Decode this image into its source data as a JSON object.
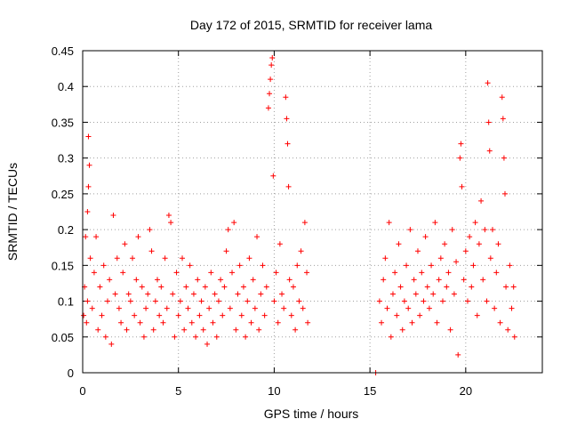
{
  "chart_data": {
    "type": "scatter",
    "title": "Day 172 of 2015, SRMTID for receiver lama",
    "xlabel": "GPS time / hours",
    "ylabel": "SRMTID / TECUs",
    "xlim": [
      0,
      24
    ],
    "ylim": [
      0,
      0.45
    ],
    "xticks": [
      0,
      5,
      10,
      15,
      20
    ],
    "yticks": [
      0,
      0.05,
      0.1,
      0.15,
      0.2,
      0.25,
      0.3,
      0.35,
      0.4,
      0.45
    ],
    "ytick_labels": [
      "0",
      "0.05",
      "0.1",
      "0.15",
      "0.2",
      "0.25",
      "0.3",
      "0.35",
      "0.4",
      "0.45"
    ],
    "grid": true,
    "marker": "+",
    "color": "#ff0000",
    "series": [
      {
        "name": "SRMTID",
        "points": [
          [
            0.05,
            0.08
          ],
          [
            0.1,
            0.12
          ],
          [
            0.15,
            0.19
          ],
          [
            0.2,
            0.07
          ],
          [
            0.25,
            0.1
          ],
          [
            0.3,
            0.33
          ],
          [
            0.35,
            0.29
          ],
          [
            0.3,
            0.26
          ],
          [
            0.25,
            0.225
          ],
          [
            0.4,
            0.16
          ],
          [
            0.5,
            0.09
          ],
          [
            0.6,
            0.14
          ],
          [
            0.7,
            0.19
          ],
          [
            0.8,
            0.06
          ],
          [
            0.9,
            0.12
          ],
          [
            1.0,
            0.08
          ],
          [
            1.1,
            0.15
          ],
          [
            1.2,
            0.05
          ],
          [
            1.3,
            0.1
          ],
          [
            1.4,
            0.13
          ],
          [
            1.5,
            0.04
          ],
          [
            1.6,
            0.22
          ],
          [
            1.7,
            0.11
          ],
          [
            1.8,
            0.16
          ],
          [
            1.9,
            0.09
          ],
          [
            2.0,
            0.07
          ],
          [
            2.1,
            0.14
          ],
          [
            2.2,
            0.18
          ],
          [
            2.3,
            0.06
          ],
          [
            2.4,
            0.11
          ],
          [
            2.5,
            0.1
          ],
          [
            2.6,
            0.16
          ],
          [
            2.7,
            0.08
          ],
          [
            2.8,
            0.13
          ],
          [
            2.9,
            0.19
          ],
          [
            3.0,
            0.07
          ],
          [
            3.1,
            0.12
          ],
          [
            3.2,
            0.05
          ],
          [
            3.3,
            0.09
          ],
          [
            3.4,
            0.11
          ],
          [
            3.5,
            0.2
          ],
          [
            3.6,
            0.17
          ],
          [
            3.7,
            0.06
          ],
          [
            3.8,
            0.1
          ],
          [
            3.9,
            0.13
          ],
          [
            4.0,
            0.08
          ],
          [
            4.1,
            0.12
          ],
          [
            4.2,
            0.07
          ],
          [
            4.3,
            0.16
          ],
          [
            4.4,
            0.09
          ],
          [
            4.5,
            0.22
          ],
          [
            4.6,
            0.21
          ],
          [
            4.7,
            0.11
          ],
          [
            4.8,
            0.05
          ],
          [
            4.9,
            0.14
          ],
          [
            5.0,
            0.08
          ],
          [
            5.1,
            0.1
          ],
          [
            5.2,
            0.16
          ],
          [
            5.3,
            0.06
          ],
          [
            5.4,
            0.12
          ],
          [
            5.5,
            0.09
          ],
          [
            5.6,
            0.15
          ],
          [
            5.7,
            0.07
          ],
          [
            5.8,
            0.11
          ],
          [
            5.9,
            0.05
          ],
          [
            6.0,
            0.13
          ],
          [
            6.1,
            0.08
          ],
          [
            6.2,
            0.1
          ],
          [
            6.3,
            0.06
          ],
          [
            6.4,
            0.12
          ],
          [
            6.5,
            0.04
          ],
          [
            6.6,
            0.09
          ],
          [
            6.7,
            0.14
          ],
          [
            6.8,
            0.07
          ],
          [
            6.9,
            0.11
          ],
          [
            7.0,
            0.05
          ],
          [
            7.1,
            0.1
          ],
          [
            7.2,
            0.13
          ],
          [
            7.3,
            0.08
          ],
          [
            7.4,
            0.12
          ],
          [
            7.5,
            0.17
          ],
          [
            7.6,
            0.2
          ],
          [
            7.7,
            0.09
          ],
          [
            7.8,
            0.14
          ],
          [
            7.9,
            0.21
          ],
          [
            8.0,
            0.06
          ],
          [
            8.1,
            0.11
          ],
          [
            8.2,
            0.15
          ],
          [
            8.3,
            0.08
          ],
          [
            8.4,
            0.12
          ],
          [
            8.5,
            0.05
          ],
          [
            8.6,
            0.1
          ],
          [
            8.7,
            0.16
          ],
          [
            8.8,
            0.07
          ],
          [
            8.9,
            0.13
          ],
          [
            9.0,
            0.09
          ],
          [
            9.1,
            0.19
          ],
          [
            9.2,
            0.06
          ],
          [
            9.3,
            0.11
          ],
          [
            9.4,
            0.15
          ],
          [
            9.5,
            0.08
          ],
          [
            9.6,
            0.12
          ],
          [
            9.7,
            0.37
          ],
          [
            9.75,
            0.39
          ],
          [
            9.8,
            0.41
          ],
          [
            9.85,
            0.43
          ],
          [
            9.9,
            0.44
          ],
          [
            9.95,
            0.275
          ],
          [
            10.0,
            0.1
          ],
          [
            10.1,
            0.14
          ],
          [
            10.2,
            0.07
          ],
          [
            10.3,
            0.18
          ],
          [
            10.4,
            0.11
          ],
          [
            10.5,
            0.09
          ],
          [
            10.6,
            0.385
          ],
          [
            10.65,
            0.355
          ],
          [
            10.7,
            0.32
          ],
          [
            10.75,
            0.26
          ],
          [
            10.8,
            0.13
          ],
          [
            10.9,
            0.08
          ],
          [
            11.0,
            0.12
          ],
          [
            11.1,
            0.06
          ],
          [
            11.2,
            0.15
          ],
          [
            11.3,
            0.1
          ],
          [
            11.4,
            0.17
          ],
          [
            11.5,
            0.09
          ],
          [
            11.6,
            0.21
          ],
          [
            11.7,
            0.14
          ],
          [
            11.75,
            0.07
          ],
          [
            15.3,
            0.0
          ],
          [
            15.5,
            0.1
          ],
          [
            15.6,
            0.07
          ],
          [
            15.7,
            0.13
          ],
          [
            15.8,
            0.16
          ],
          [
            15.9,
            0.09
          ],
          [
            16.0,
            0.21
          ],
          [
            16.1,
            0.05
          ],
          [
            16.2,
            0.11
          ],
          [
            16.3,
            0.14
          ],
          [
            16.4,
            0.08
          ],
          [
            16.5,
            0.18
          ],
          [
            16.6,
            0.12
          ],
          [
            16.7,
            0.06
          ],
          [
            16.8,
            0.1
          ],
          [
            16.9,
            0.15
          ],
          [
            17.0,
            0.09
          ],
          [
            17.1,
            0.2
          ],
          [
            17.2,
            0.07
          ],
          [
            17.3,
            0.13
          ],
          [
            17.4,
            0.11
          ],
          [
            17.5,
            0.17
          ],
          [
            17.6,
            0.08
          ],
          [
            17.7,
            0.14
          ],
          [
            17.8,
            0.1
          ],
          [
            17.9,
            0.19
          ],
          [
            18.0,
            0.12
          ],
          [
            18.1,
            0.09
          ],
          [
            18.2,
            0.15
          ],
          [
            18.3,
            0.11
          ],
          [
            18.4,
            0.21
          ],
          [
            18.5,
            0.07
          ],
          [
            18.6,
            0.13
          ],
          [
            18.7,
            0.16
          ],
          [
            18.8,
            0.1
          ],
          [
            18.9,
            0.18
          ],
          [
            19.0,
            0.12
          ],
          [
            19.1,
            0.14
          ],
          [
            19.2,
            0.06
          ],
          [
            19.3,
            0.2
          ],
          [
            19.4,
            0.11
          ],
          [
            19.5,
            0.155
          ],
          [
            19.6,
            0.025
          ],
          [
            19.7,
            0.3
          ],
          [
            19.75,
            0.32
          ],
          [
            19.8,
            0.26
          ],
          [
            19.9,
            0.13
          ],
          [
            20.0,
            0.17
          ],
          [
            20.1,
            0.1
          ],
          [
            20.2,
            0.19
          ],
          [
            20.3,
            0.12
          ],
          [
            20.4,
            0.15
          ],
          [
            20.5,
            0.21
          ],
          [
            20.6,
            0.08
          ],
          [
            20.7,
            0.18
          ],
          [
            20.8,
            0.24
          ],
          [
            20.9,
            0.13
          ],
          [
            21.0,
            0.2
          ],
          [
            21.1,
            0.1
          ],
          [
            21.15,
            0.405
          ],
          [
            21.2,
            0.35
          ],
          [
            21.25,
            0.31
          ],
          [
            21.3,
            0.16
          ],
          [
            21.4,
            0.2
          ],
          [
            21.5,
            0.09
          ],
          [
            21.6,
            0.14
          ],
          [
            21.7,
            0.18
          ],
          [
            21.8,
            0.07
          ],
          [
            21.9,
            0.385
          ],
          [
            21.95,
            0.355
          ],
          [
            22.0,
            0.3
          ],
          [
            22.05,
            0.25
          ],
          [
            22.1,
            0.12
          ],
          [
            22.2,
            0.06
          ],
          [
            22.3,
            0.15
          ],
          [
            22.4,
            0.09
          ],
          [
            22.5,
            0.12
          ],
          [
            22.55,
            0.05
          ]
        ]
      }
    ]
  }
}
